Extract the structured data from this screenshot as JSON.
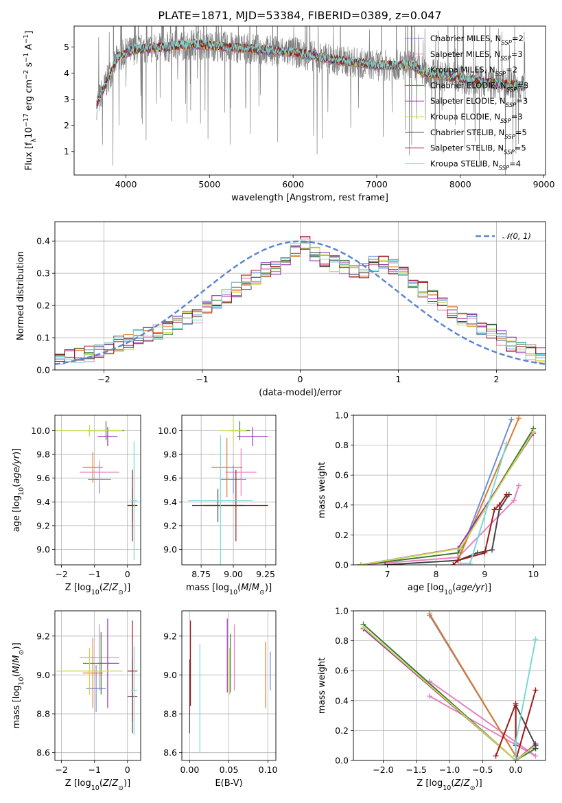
{
  "title": "PLATE=1871, MJD=53384, FIBERID=0389, z=0.047",
  "colors": {
    "Chabrier MILES": "#6a8fd8",
    "Salpeter MILES": "#e87fbf",
    "Kroupa MILES": "#e07828",
    "Chabrier ELODIE": "#3a7a3a",
    "Salpeter ELODIE": "#9a30b8",
    "Kroupa ELODIE": "#c8d848",
    "Chabrier STELIB": "#444444",
    "Salpeter STELIB": "#a01818",
    "Kroupa STELIB": "#78d8d8",
    "data": "#808080",
    "normal": "#5b86d0",
    "grid": "#b0b0b0"
  },
  "chart_data": [
    {
      "id": "spectrum",
      "type": "line",
      "title": "PLATE=1871, MJD=53384, FIBERID=0389, z=0.047",
      "xlabel": "wavelength [Angstrom, rest frame]",
      "ylabel": "Flux [f_λ 10^-17 erg cm^-2 s^-1 A^-1]",
      "xlim": [
        3380,
        9020
      ],
      "ylim": [
        0.1,
        5.8
      ],
      "xticks": [
        4000,
        5000,
        6000,
        7000,
        8000,
        9000
      ],
      "yticks": [
        1,
        2,
        3,
        4,
        5
      ],
      "grid": false,
      "legend_position": "top-right",
      "data_trace": {
        "name": "data",
        "x_range": [
          3650,
          8780
        ],
        "note_x": [
          3650,
          3900,
          4100,
          4500,
          4800,
          5200,
          5600,
          6000,
          6500,
          7000,
          7400,
          7600,
          8000,
          8400,
          8780
        ],
        "y": [
          2.8,
          4.6,
          4.9,
          5.0,
          5.1,
          5.0,
          4.9,
          4.8,
          4.5,
          4.3,
          4.3,
          4.0,
          3.8,
          3.6,
          3.5
        ]
      },
      "model_continuum": {
        "x": [
          3650,
          3900,
          4100,
          4500,
          4800,
          5200,
          5600,
          6000,
          6500,
          7000,
          7400,
          7600,
          8000,
          8400,
          8780
        ],
        "y": [
          2.8,
          4.6,
          4.9,
          5.0,
          5.1,
          5.0,
          4.9,
          4.8,
          4.5,
          4.3,
          4.3,
          4.0,
          3.8,
          3.6,
          3.5
        ]
      },
      "legend": [
        {
          "label": "Chabrier MILES, N",
          "sub": "SSP",
          "suffix": "=2",
          "key": "Chabrier MILES"
        },
        {
          "label": "Salpeter MILES, N",
          "sub": "SSP",
          "suffix": "=3",
          "key": "Salpeter MILES"
        },
        {
          "label": "Kroupa MILES, N",
          "sub": "SSP",
          "suffix": "=2",
          "key": "Kroupa MILES"
        },
        {
          "label": "Chabrier ELODIE, N",
          "sub": "SSP",
          "suffix": "=3",
          "key": "Chabrier ELODIE"
        },
        {
          "label": "Salpeter ELODIE, N",
          "sub": "SSP",
          "suffix": "=3",
          "key": "Salpeter ELODIE"
        },
        {
          "label": "Kroupa ELODIE, N",
          "sub": "SSP",
          "suffix": "=3",
          "key": "Kroupa ELODIE"
        },
        {
          "label": "Chabrier STELIB, N",
          "sub": "SSP",
          "suffix": "=5",
          "key": "Chabrier STELIB"
        },
        {
          "label": "Salpeter STELIB, N",
          "sub": "SSP",
          "suffix": "=5",
          "key": "Salpeter STELIB"
        },
        {
          "label": "Kroupa STELIB, N",
          "sub": "SSP",
          "suffix": "=4",
          "key": "Kroupa STELIB"
        }
      ]
    },
    {
      "id": "residuals",
      "type": "histogram",
      "xlabel": "(data-model)/error",
      "ylabel": "Normed distribution",
      "xlim": [
        -2.5,
        2.5
      ],
      "ylim": [
        0,
        0.46
      ],
      "xticks": [
        -2,
        -1,
        0,
        1,
        2
      ],
      "yticks": [
        0.0,
        0.1,
        0.2,
        0.3,
        0.4
      ],
      "grid": true,
      "legend": [
        {
          "label": "𝒩(0, 1)",
          "style": "dashed"
        }
      ],
      "bin_edges_start": -2.5,
      "bin_width": 0.1,
      "reference_values": [
        0.035,
        0.04,
        0.045,
        0.05,
        0.06,
        0.065,
        0.08,
        0.085,
        0.1,
        0.11,
        0.12,
        0.13,
        0.145,
        0.16,
        0.17,
        0.19,
        0.21,
        0.23,
        0.25,
        0.27,
        0.29,
        0.31,
        0.32,
        0.34,
        0.37,
        0.39,
        0.36,
        0.34,
        0.33,
        0.32,
        0.3,
        0.31,
        0.33,
        0.34,
        0.32,
        0.31,
        0.28,
        0.25,
        0.23,
        0.2,
        0.18,
        0.16,
        0.15,
        0.13,
        0.12,
        0.1,
        0.08,
        0.065,
        0.055,
        0.045
      ]
    },
    {
      "id": "age-vs-Z",
      "type": "errorbar",
      "xlabel": "Z [log10(Z/Z⊙)]",
      "ylabel": "age  [log10(age/yr)]",
      "xlim": [
        -2.2,
        0.4
      ],
      "ylim": [
        8.87,
        10.13
      ],
      "xticks": [
        -2,
        -1,
        0
      ],
      "yticks": [
        9.0,
        9.2,
        9.4,
        9.6,
        9.8,
        10.0
      ],
      "grid": true,
      "points": [
        {
          "key": "Chabrier MILES",
          "x": -0.85,
          "xerr": 0.35,
          "y": 9.59,
          "yerr": 0.12
        },
        {
          "key": "Salpeter MILES",
          "x": -0.85,
          "xerr": 0.6,
          "y": 9.65,
          "yerr": 0.1
        },
        {
          "key": "Kroupa MILES",
          "x": -1.05,
          "xerr": 0.3,
          "y": 9.69,
          "yerr": 0.13
        },
        {
          "key": "Chabrier ELODIE",
          "x": -0.65,
          "xerr": 0.55,
          "y": 10.0,
          "yerr": 0.08
        },
        {
          "key": "Salpeter ELODIE",
          "x": -0.6,
          "xerr": 0.3,
          "y": 9.95,
          "yerr": 0.08
        },
        {
          "key": "Kroupa ELODIE",
          "x": -1.15,
          "xerr": 1.0,
          "y": 10.0,
          "yerr": 0.05
        },
        {
          "key": "Chabrier STELIB",
          "x": 0.15,
          "xerr": 0.15,
          "y": 9.37,
          "yerr": 0.14
        },
        {
          "key": "Salpeter STELIB",
          "x": 0.15,
          "xerr": 0.15,
          "y": 9.37,
          "yerr": 0.3
        },
        {
          "key": "Kroupa STELIB",
          "x": 0.2,
          "xerr": 0.1,
          "y": 9.41,
          "yerr": 0.5
        }
      ]
    },
    {
      "id": "age-vs-mass",
      "type": "errorbar",
      "xlabel": "mass [log10(M/M⊙)]",
      "ylabel": "",
      "xlim": [
        8.6,
        9.33
      ],
      "ylim": [
        8.87,
        10.13
      ],
      "xticks": [
        8.75,
        9.0,
        9.25
      ],
      "yticks": [
        9.0,
        9.2,
        9.4,
        9.6,
        9.8,
        10.0
      ],
      "grid": true,
      "points": [
        {
          "key": "Chabrier MILES",
          "x": 9.0,
          "xerr": 0.1,
          "y": 9.59,
          "yerr": 0.12
        },
        {
          "key": "Salpeter MILES",
          "x": 9.06,
          "xerr": 0.12,
          "y": 9.65,
          "yerr": 0.2
        },
        {
          "key": "Kroupa MILES",
          "x": 8.95,
          "xerr": 0.12,
          "y": 9.69,
          "yerr": 0.25
        },
        {
          "key": "Chabrier ELODIE",
          "x": 9.05,
          "xerr": 0.08,
          "y": 10.0,
          "yerr": 0.08
        },
        {
          "key": "Salpeter ELODIE",
          "x": 9.15,
          "xerr": 0.12,
          "y": 9.95,
          "yerr": 0.08
        },
        {
          "key": "Kroupa ELODIE",
          "x": 9.0,
          "xerr": 0.1,
          "y": 10.0,
          "yerr": 0.1
        },
        {
          "key": "Chabrier STELIB",
          "x": 8.88,
          "xerr": 0.2,
          "y": 9.37,
          "yerr": 0.14
        },
        {
          "key": "Salpeter STELIB",
          "x": 9.02,
          "xerr": 0.25,
          "y": 9.37,
          "yerr": 0.3
        },
        {
          "key": "Kroupa STELIB",
          "x": 8.9,
          "xerr": 0.25,
          "y": 9.41,
          "yerr": 0.55
        }
      ]
    },
    {
      "id": "massweight-vs-age",
      "type": "line",
      "xlabel": "age  [log10(age/yr)]",
      "ylabel": "mass weight",
      "xlim": [
        6.3,
        10.25
      ],
      "ylim": [
        0,
        1
      ],
      "xticks": [
        7,
        8,
        9,
        10
      ],
      "yticks": [
        0.0,
        0.2,
        0.4,
        0.6,
        0.8,
        1.0
      ],
      "grid": true,
      "series": [
        {
          "key": "Chabrier MILES",
          "x": [
            8.45,
            9.55
          ],
          "y": [
            0.03,
            0.97
          ]
        },
        {
          "key": "Salpeter MILES",
          "x": [
            6.45,
            8.45,
            9.6,
            9.7
          ],
          "y": [
            0.0,
            0.05,
            0.43,
            0.53
          ]
        },
        {
          "key": "Kroupa MILES",
          "x": [
            8.45,
            9.7
          ],
          "y": [
            0.03,
            0.98
          ]
        },
        {
          "key": "Chabrier ELODIE",
          "x": [
            6.45,
            8.45,
            10.0
          ],
          "y": [
            0.0,
            0.08,
            0.91
          ]
        },
        {
          "key": "Salpeter ELODIE",
          "x": [
            6.45,
            8.45,
            10.0
          ],
          "y": [
            0.0,
            0.11,
            0.88
          ]
        },
        {
          "key": "Kroupa ELODIE",
          "x": [
            6.45,
            8.5,
            10.0
          ],
          "y": [
            0.0,
            0.11,
            0.89
          ]
        },
        {
          "key": "Chabrier STELIB",
          "x": [
            6.95,
            8.45,
            8.85,
            9.15,
            9.3,
            9.5
          ],
          "y": [
            0.0,
            0.03,
            0.08,
            0.1,
            0.37,
            0.47
          ]
        },
        {
          "key": "Salpeter STELIB",
          "x": [
            8.35,
            8.45,
            9.0,
            9.2,
            9.3,
            9.45
          ],
          "y": [
            0.0,
            0.03,
            0.08,
            0.37,
            0.4,
            0.47
          ]
        },
        {
          "key": "Kroupa STELIB",
          "x": [
            8.5,
            8.7,
            9.45
          ],
          "y": [
            0.01,
            0.01,
            0.81
          ]
        }
      ]
    },
    {
      "id": "mass-vs-Z",
      "type": "errorbar",
      "xlabel": "Z [log10(Z/Z⊙)]",
      "ylabel": "mass [log10(M/M⊙)]",
      "xlim": [
        -2.2,
        0.4
      ],
      "ylim": [
        8.56,
        9.33
      ],
      "xticks": [
        -2,
        -1,
        0
      ],
      "yticks": [
        8.6,
        8.8,
        9.0,
        9.2
      ],
      "grid": true,
      "points": [
        {
          "key": "Chabrier MILES",
          "x": -0.95,
          "xerr": 0.3,
          "y": 8.93,
          "yerr": 0.12
        },
        {
          "key": "Salpeter MILES",
          "x": -0.85,
          "xerr": 0.6,
          "y": 9.09,
          "yerr": 0.17
        },
        {
          "key": "Kroupa MILES",
          "x": -1.05,
          "xerr": 0.3,
          "y": 9.01,
          "yerr": 0.18
        },
        {
          "key": "Chabrier ELODIE",
          "x": -0.8,
          "xerr": 0.55,
          "y": 9.06,
          "yerr": 0.16
        },
        {
          "key": "Salpeter ELODIE",
          "x": -0.6,
          "xerr": 0.3,
          "y": 9.06,
          "yerr": 0.23
        },
        {
          "key": "Kroupa ELODIE",
          "x": -1.15,
          "xerr": 1.0,
          "y": 9.02,
          "yerr": 0.12
        },
        {
          "key": "Chabrier STELIB",
          "x": 0.15,
          "xerr": 0.15,
          "y": 8.89,
          "yerr": 0.19
        },
        {
          "key": "Salpeter STELIB",
          "x": 0.15,
          "xerr": 0.15,
          "y": 9.02,
          "yerr": 0.26
        },
        {
          "key": "Kroupa STELIB",
          "x": 0.2,
          "xerr": 0.1,
          "y": 8.92,
          "yerr": 0.23
        }
      ]
    },
    {
      "id": "mass-vs-EBV",
      "type": "errorbar",
      "xlabel": "E(B-V)",
      "ylabel": "",
      "xlim": [
        -0.01,
        0.11
      ],
      "ylim": [
        8.56,
        9.33
      ],
      "xticks": [
        0.0,
        0.05,
        0.1
      ],
      "yticks": [
        8.6,
        8.8,
        9.0,
        9.2
      ],
      "grid": true,
      "points": [
        {
          "key": "Chabrier MILES",
          "x": 0.103,
          "y": 9.02,
          "yerr": 0.1
        },
        {
          "key": "Salpeter MILES",
          "x": 0.057,
          "y": 9.09,
          "yerr": 0.17
        },
        {
          "key": "Kroupa MILES",
          "x": 0.097,
          "y": 9.0,
          "yerr": 0.17
        },
        {
          "key": "Chabrier ELODIE",
          "x": 0.052,
          "y": 9.06,
          "yerr": 0.15
        },
        {
          "key": "Salpeter ELODIE",
          "x": 0.048,
          "y": 9.1,
          "yerr": 0.19
        },
        {
          "key": "Kroupa ELODIE",
          "x": 0.051,
          "y": 9.02,
          "yerr": 0.12
        },
        {
          "key": "Chabrier STELIB",
          "x": 0.0,
          "y": 8.89,
          "yerr": 0.19
        },
        {
          "key": "Salpeter STELIB",
          "x": 0.001,
          "y": 9.06,
          "yerr": 0.22
        },
        {
          "key": "Kroupa STELIB",
          "x": 0.013,
          "y": 8.88,
          "yerr": 0.28
        }
      ]
    },
    {
      "id": "massweight-vs-Z",
      "type": "line",
      "xlabel": "Z [log10(Z/Z⊙)]",
      "ylabel": "mass weight",
      "xlim": [
        -2.45,
        0.45
      ],
      "ylim": [
        0,
        1
      ],
      "xticks": [
        -2.0,
        -1.5,
        -1.0,
        -0.5,
        0.0
      ],
      "yticks": [
        0.0,
        0.2,
        0.4,
        0.6,
        0.8,
        1.0
      ],
      "grid": true,
      "series": [
        {
          "key": "Chabrier MILES",
          "x": [
            -1.3,
            0.0
          ],
          "y": [
            0.97,
            0.03
          ]
        },
        {
          "key": "Salpeter MILES",
          "x": [
            -1.3,
            0.3,
            -1.3
          ],
          "y": [
            0.53,
            0.03,
            0.43
          ]
        },
        {
          "key": "Kroupa MILES",
          "x": [
            -1.3,
            0.0
          ],
          "y": [
            0.98,
            0.03
          ]
        },
        {
          "key": "Chabrier ELODIE",
          "x": [
            -2.3,
            0.0,
            0.3
          ],
          "y": [
            0.91,
            0.0,
            0.08
          ]
        },
        {
          "key": "Salpeter ELODIE",
          "x": [
            -2.3,
            0.0,
            0.3
          ],
          "y": [
            0.88,
            0.0,
            0.11
          ]
        },
        {
          "key": "Kroupa ELODIE",
          "x": [
            -2.3,
            0.0,
            0.3
          ],
          "y": [
            0.89,
            0.0,
            0.1
          ]
        },
        {
          "key": "Chabrier STELIB",
          "x": [
            0.0,
            0.0,
            0.3,
            0.3
          ],
          "y": [
            0.1,
            0.37,
            0.1,
            0.08
          ]
        },
        {
          "key": "Salpeter STELIB",
          "x": [
            -0.3,
            0.0,
            0.0,
            0.3
          ],
          "y": [
            0.03,
            0.38,
            0.0,
            0.47
          ]
        },
        {
          "key": "Kroupa STELIB",
          "x": [
            0.0,
            0.0,
            0.3
          ],
          "y": [
            0.01,
            0.12,
            0.81
          ]
        }
      ]
    }
  ]
}
